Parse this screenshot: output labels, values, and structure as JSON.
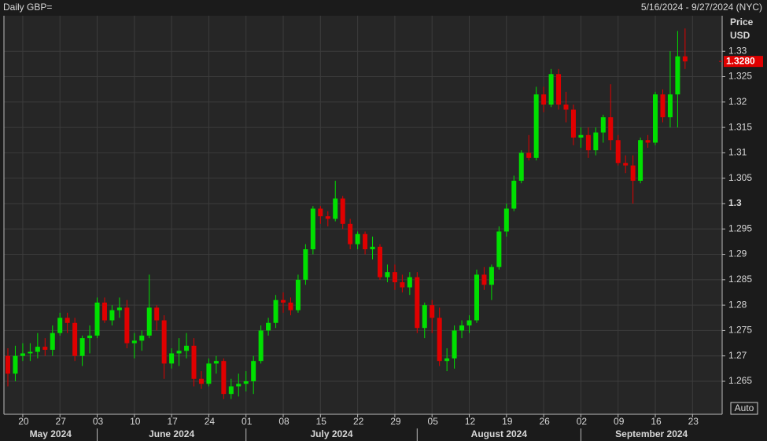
{
  "chart_data": {
    "type": "candlestick",
    "title": "Daily GBP=",
    "range": "5/16/2024 - 9/27/2024 (NYC)",
    "ylabel": "Price",
    "yunit": "USD",
    "auto_button": "Auto",
    "up_color": "#00e000",
    "down_color": "#e00000",
    "last_price": {
      "value": 1.328,
      "label": "1.3280"
    },
    "categories": [
      "2024-05-16",
      "2024-05-17",
      "2024-05-20",
      "2024-05-21",
      "2024-05-22",
      "2024-05-23",
      "2024-05-24",
      "2024-05-27",
      "2024-05-28",
      "2024-05-29",
      "2024-05-30",
      "2024-05-31",
      "2024-06-03",
      "2024-06-04",
      "2024-06-05",
      "2024-06-06",
      "2024-06-07",
      "2024-06-10",
      "2024-06-11",
      "2024-06-12",
      "2024-06-13",
      "2024-06-14",
      "2024-06-17",
      "2024-06-18",
      "2024-06-19",
      "2024-06-20",
      "2024-06-21",
      "2024-06-24",
      "2024-06-25",
      "2024-06-26",
      "2024-06-27",
      "2024-06-28",
      "2024-07-01",
      "2024-07-02",
      "2024-07-03",
      "2024-07-04",
      "2024-07-05",
      "2024-07-08",
      "2024-07-09",
      "2024-07-10",
      "2024-07-11",
      "2024-07-12",
      "2024-07-15",
      "2024-07-16",
      "2024-07-17",
      "2024-07-18",
      "2024-07-19",
      "2024-07-22",
      "2024-07-23",
      "2024-07-24",
      "2024-07-25",
      "2024-07-26",
      "2024-07-29",
      "2024-07-30",
      "2024-07-31",
      "2024-08-01",
      "2024-08-02",
      "2024-08-05",
      "2024-08-06",
      "2024-08-07",
      "2024-08-08",
      "2024-08-09",
      "2024-08-12",
      "2024-08-13",
      "2024-08-14",
      "2024-08-15",
      "2024-08-16",
      "2024-08-19",
      "2024-08-20",
      "2024-08-21",
      "2024-08-22",
      "2024-08-23",
      "2024-08-26",
      "2024-08-27",
      "2024-08-28",
      "2024-08-29",
      "2024-08-30",
      "2024-09-02",
      "2024-09-03",
      "2024-09-04",
      "2024-09-05",
      "2024-09-06",
      "2024-09-09",
      "2024-09-10",
      "2024-09-11",
      "2024-09-12",
      "2024-09-13",
      "2024-09-16",
      "2024-09-17",
      "2024-09-18",
      "2024-09-19",
      "2024-09-20"
    ],
    "open": [
      1.27,
      1.2665,
      1.27,
      1.2705,
      1.2708,
      1.2718,
      1.2712,
      1.2745,
      1.2775,
      1.2765,
      1.27,
      1.2735,
      1.274,
      1.2805,
      1.277,
      1.279,
      1.2795,
      1.2725,
      1.273,
      1.274,
      1.2795,
      1.277,
      1.2685,
      1.2705,
      1.271,
      1.272,
      1.2655,
      1.2645,
      1.2685,
      1.269,
      1.2625,
      1.264,
      1.2645,
      1.265,
      1.269,
      1.275,
      1.2765,
      1.281,
      1.2805,
      1.279,
      1.285,
      1.291,
      1.299,
      1.2975,
      1.297,
      1.301,
      1.296,
      1.292,
      1.294,
      1.291,
      1.2915,
      1.2855,
      1.2865,
      1.2845,
      1.2835,
      1.2855,
      1.2755,
      1.28,
      1.2775,
      1.269,
      1.2695,
      1.275,
      1.276,
      1.277,
      1.286,
      1.284,
      1.2875,
      1.2945,
      1.299,
      1.3045,
      1.31,
      1.309,
      1.3215,
      1.3195,
      1.3255,
      1.3195,
      1.3185,
      1.313,
      1.3135,
      1.3105,
      1.314,
      1.317,
      1.3125,
      1.308,
      1.3075,
      1.3045,
      1.3125,
      1.312,
      1.3215,
      1.317,
      1.3215,
      1.329
    ],
    "high": [
      1.2715,
      1.272,
      1.2725,
      1.2725,
      1.2745,
      1.2735,
      1.276,
      1.2785,
      1.2785,
      1.2775,
      1.274,
      1.276,
      1.2815,
      1.2815,
      1.28,
      1.2815,
      1.281,
      1.2745,
      1.275,
      1.286,
      1.28,
      1.278,
      1.2715,
      1.2735,
      1.2745,
      1.2735,
      1.267,
      1.2695,
      1.27,
      1.2695,
      1.2655,
      1.2665,
      1.267,
      1.27,
      1.276,
      1.2775,
      1.282,
      1.2825,
      1.2815,
      1.286,
      1.292,
      1.2995,
      1.2995,
      1.2985,
      1.3045,
      1.3015,
      1.297,
      1.2945,
      1.2945,
      1.2935,
      1.292,
      1.288,
      1.288,
      1.286,
      1.2865,
      1.2865,
      1.2805,
      1.281,
      1.2795,
      1.2715,
      1.276,
      1.277,
      1.278,
      1.287,
      1.2875,
      1.288,
      1.2955,
      1.3,
      1.3055,
      1.3105,
      1.3135,
      1.323,
      1.323,
      1.3265,
      1.3265,
      1.322,
      1.3195,
      1.315,
      1.315,
      1.315,
      1.3175,
      1.3235,
      1.3135,
      1.3095,
      1.3095,
      1.313,
      1.3135,
      1.322,
      1.3225,
      1.33,
      1.334,
      1.3345
    ],
    "low": [
      1.264,
      1.265,
      1.269,
      1.269,
      1.2695,
      1.27,
      1.27,
      1.274,
      1.2745,
      1.269,
      1.268,
      1.2705,
      1.2735,
      1.2765,
      1.276,
      1.2775,
      1.2715,
      1.2695,
      1.271,
      1.2735,
      1.275,
      1.2655,
      1.2675,
      1.268,
      1.2695,
      1.264,
      1.2635,
      1.264,
      1.2665,
      1.2615,
      1.2615,
      1.262,
      1.263,
      1.2625,
      1.2685,
      1.274,
      1.2755,
      1.2785,
      1.278,
      1.2785,
      1.284,
      1.29,
      1.296,
      1.2955,
      1.2965,
      1.295,
      1.291,
      1.291,
      1.29,
      1.289,
      1.285,
      1.2845,
      1.283,
      1.2825,
      1.282,
      1.2745,
      1.2735,
      1.2745,
      1.268,
      1.267,
      1.2675,
      1.2735,
      1.2745,
      1.2765,
      1.283,
      1.281,
      1.287,
      1.2935,
      1.2985,
      1.304,
      1.3085,
      1.3085,
      1.318,
      1.319,
      1.3185,
      1.316,
      1.3115,
      1.311,
      1.309,
      1.3095,
      1.312,
      1.3105,
      1.3075,
      1.306,
      1.3,
      1.304,
      1.311,
      1.3115,
      1.316,
      1.315,
      1.315,
      1.3265
    ],
    "close": [
      1.2665,
      1.27,
      1.2705,
      1.2708,
      1.2718,
      1.2712,
      1.2745,
      1.2775,
      1.2765,
      1.27,
      1.2735,
      1.274,
      1.2805,
      1.277,
      1.279,
      1.2795,
      1.2725,
      1.273,
      1.274,
      1.2795,
      1.277,
      1.2685,
      1.2705,
      1.271,
      1.272,
      1.2655,
      1.2645,
      1.2685,
      1.269,
      1.2625,
      1.264,
      1.2645,
      1.265,
      1.269,
      1.275,
      1.2765,
      1.281,
      1.2805,
      1.279,
      1.285,
      1.291,
      1.299,
      1.2975,
      1.297,
      1.301,
      1.296,
      1.292,
      1.294,
      1.291,
      1.2915,
      1.2855,
      1.2865,
      1.2845,
      1.2835,
      1.2855,
      1.2755,
      1.28,
      1.2775,
      1.269,
      1.2695,
      1.275,
      1.276,
      1.277,
      1.286,
      1.284,
      1.2875,
      1.2945,
      1.299,
      1.3045,
      1.31,
      1.309,
      1.3215,
      1.3195,
      1.3255,
      1.3195,
      1.3185,
      1.313,
      1.3135,
      1.3105,
      1.314,
      1.317,
      1.3125,
      1.308,
      1.3075,
      1.3045,
      1.3125,
      1.312,
      1.3215,
      1.317,
      1.3215,
      1.329,
      1.328
    ],
    "ylim": [
      1.2585,
      1.337
    ],
    "yticks": [
      1.265,
      1.27,
      1.275,
      1.28,
      1.285,
      1.29,
      1.295,
      1.3,
      1.305,
      1.31,
      1.315,
      1.32,
      1.325,
      1.33
    ],
    "xticks": [
      {
        "value": "2024-05-20",
        "label": "20"
      },
      {
        "value": "2024-05-27",
        "label": "27"
      },
      {
        "value": "2024-06-03",
        "label": "03"
      },
      {
        "value": "2024-06-10",
        "label": "10"
      },
      {
        "value": "2024-06-17",
        "label": "17"
      },
      {
        "value": "2024-06-24",
        "label": "24"
      },
      {
        "value": "2024-07-01",
        "label": "01"
      },
      {
        "value": "2024-07-08",
        "label": "08"
      },
      {
        "value": "2024-07-15",
        "label": "15"
      },
      {
        "value": "2024-07-22",
        "label": "22"
      },
      {
        "value": "2024-07-29",
        "label": "29"
      },
      {
        "value": "2024-08-05",
        "label": "05"
      },
      {
        "value": "2024-08-12",
        "label": "12"
      },
      {
        "value": "2024-08-19",
        "label": "19"
      },
      {
        "value": "2024-08-26",
        "label": "26"
      },
      {
        "value": "2024-09-02",
        "label": "02"
      },
      {
        "value": "2024-09-09",
        "label": "09"
      },
      {
        "value": "2024-09-16",
        "label": "16"
      },
      {
        "value": "2024-09-23",
        "label": "23"
      }
    ],
    "months": [
      {
        "value": "2024-05",
        "label": "May 2024"
      },
      {
        "value": "2024-06",
        "label": "June 2024"
      },
      {
        "value": "2024-07",
        "label": "July 2024"
      },
      {
        "value": "2024-08",
        "label": "August 2024"
      },
      {
        "value": "2024-09",
        "label": "September 2024"
      }
    ],
    "grid": true
  }
}
